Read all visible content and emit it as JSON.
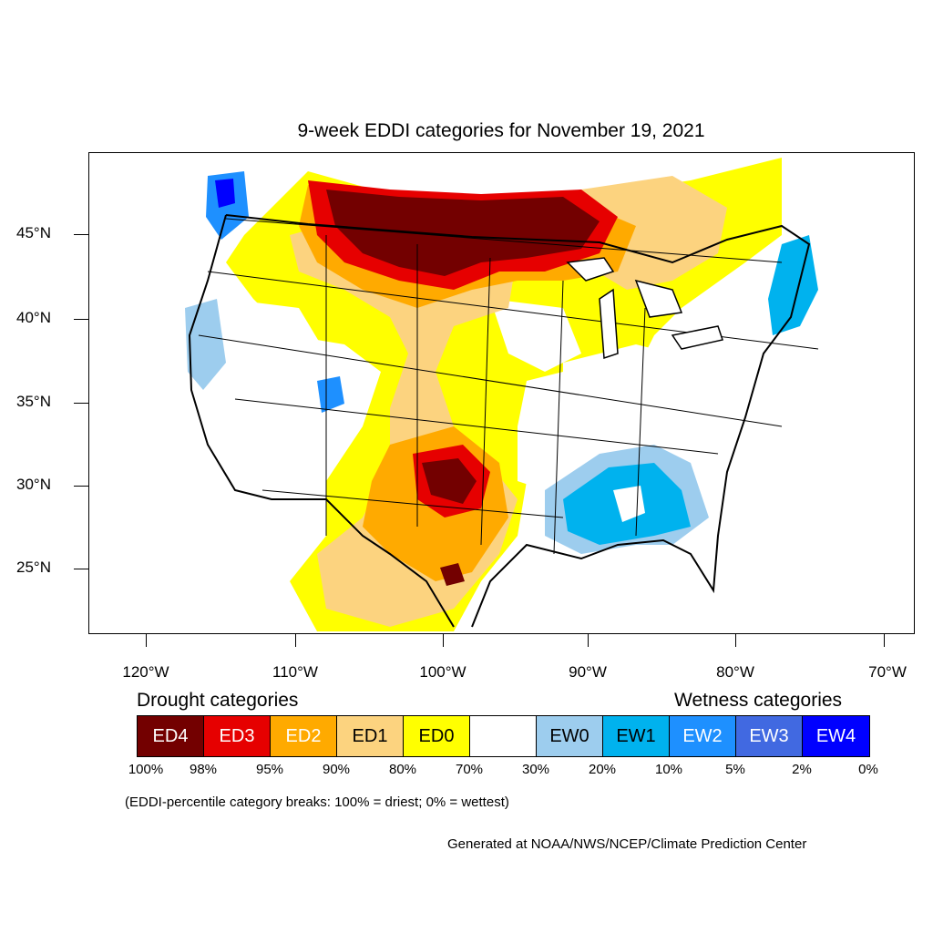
{
  "title": "9-week EDDI categories for November 19, 2021",
  "lat_labels": [
    "45°N",
    "40°N",
    "35°N",
    "30°N",
    "25°N"
  ],
  "lon_labels": [
    "120°W",
    "110°W",
    "100°W",
    "90°W",
    "80°W",
    "70°W"
  ],
  "drought_heading": "Drought categories",
  "wetness_heading": "Wetness categories",
  "legend": [
    {
      "label": "ED4",
      "color": "#730000",
      "text_color": "#ffffff"
    },
    {
      "label": "ED3",
      "color": "#e60000",
      "text_color": "#ffffff"
    },
    {
      "label": "ED2",
      "color": "#ffaa00",
      "text_color": "#ffffff"
    },
    {
      "label": "ED1",
      "color": "#fcd37f",
      "text_color": "#000000"
    },
    {
      "label": "ED0",
      "color": "#ffff00",
      "text_color": "#000000"
    },
    {
      "label": "",
      "color": "#ffffff",
      "text_color": "#000000"
    },
    {
      "label": "EW0",
      "color": "#9dcdee",
      "text_color": "#000000"
    },
    {
      "label": "EW1",
      "color": "#00b2ee",
      "text_color": "#000000"
    },
    {
      "label": "EW2",
      "color": "#1e90ff",
      "text_color": "#ffffff"
    },
    {
      "label": "EW3",
      "color": "#4169e1",
      "text_color": "#ffffff"
    },
    {
      "label": "EW4",
      "color": "#0000ff",
      "text_color": "#ffffff"
    }
  ],
  "percent_breaks": [
    "100%",
    "98%",
    "95%",
    "90%",
    "80%",
    "70%",
    "30%",
    "20%",
    "10%",
    "5%",
    "2%",
    "0%"
  ],
  "note": "(EDDI-percentile category breaks: 100% = driest; 0% = wettest)",
  "credit": "Generated at NOAA/NWS/NCEP/Climate Prediction Center"
}
